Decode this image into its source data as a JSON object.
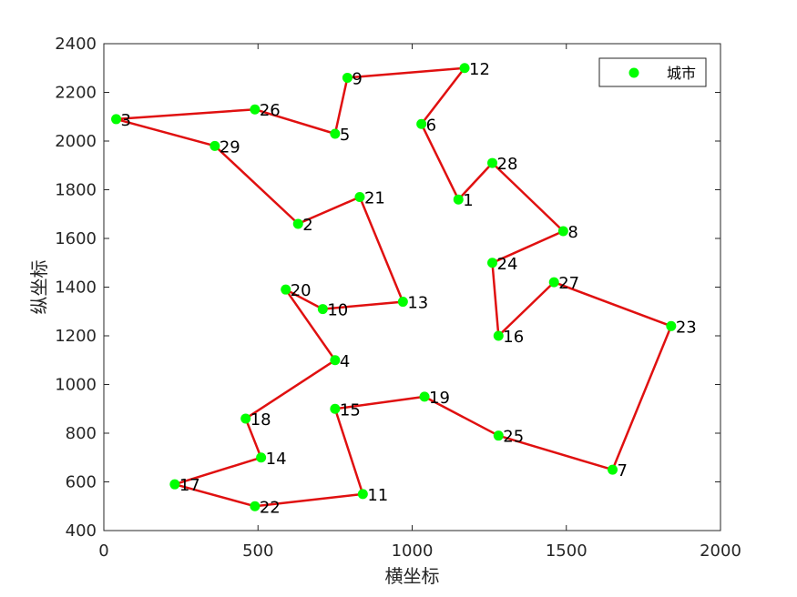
{
  "chart_data": {
    "type": "scatter",
    "xlabel": "横坐标",
    "ylabel": "纵坐标",
    "xlim": [
      0,
      2000
    ],
    "ylim": [
      400,
      2400
    ],
    "xticks": [
      0,
      500,
      1000,
      1500,
      2000
    ],
    "yticks": [
      400,
      600,
      800,
      1000,
      1200,
      1400,
      1600,
      1800,
      2000,
      2200,
      2400
    ],
    "grid": false,
    "legend": {
      "entries": [
        "城市"
      ],
      "position": "top-right"
    },
    "colors": {
      "points": "#00ff00",
      "route": "#e01010",
      "axes": "#262626"
    },
    "series": [
      {
        "name": "城市",
        "points": [
          {
            "id": "1",
            "x": 1150,
            "y": 1760
          },
          {
            "id": "2",
            "x": 630,
            "y": 1660
          },
          {
            "id": "3",
            "x": 40,
            "y": 2090
          },
          {
            "id": "4",
            "x": 750,
            "y": 1100
          },
          {
            "id": "5",
            "x": 750,
            "y": 2030
          },
          {
            "id": "6",
            "x": 1030,
            "y": 2070
          },
          {
            "id": "7",
            "x": 1650,
            "y": 650
          },
          {
            "id": "8",
            "x": 1490,
            "y": 1630
          },
          {
            "id": "9",
            "x": 790,
            "y": 2260
          },
          {
            "id": "10",
            "x": 710,
            "y": 1310
          },
          {
            "id": "11",
            "x": 840,
            "y": 550
          },
          {
            "id": "12",
            "x": 1170,
            "y": 2300
          },
          {
            "id": "13",
            "x": 970,
            "y": 1340
          },
          {
            "id": "14",
            "x": 510,
            "y": 700
          },
          {
            "id": "15",
            "x": 750,
            "y": 900
          },
          {
            "id": "16",
            "x": 1280,
            "y": 1200
          },
          {
            "id": "17",
            "x": 230,
            "y": 590
          },
          {
            "id": "18",
            "x": 460,
            "y": 860
          },
          {
            "id": "19",
            "x": 1040,
            "y": 950
          },
          {
            "id": "20",
            "x": 590,
            "y": 1390
          },
          {
            "id": "21",
            "x": 830,
            "y": 1770
          },
          {
            "id": "22",
            "x": 490,
            "y": 500
          },
          {
            "id": "23",
            "x": 1840,
            "y": 1240
          },
          {
            "id": "24",
            "x": 1260,
            "y": 1500
          },
          {
            "id": "25",
            "x": 1280,
            "y": 790
          },
          {
            "id": "26",
            "x": 490,
            "y": 2130
          },
          {
            "id": "27",
            "x": 1460,
            "y": 1420
          },
          {
            "id": "28",
            "x": 1260,
            "y": 1910
          },
          {
            "id": "29",
            "x": 360,
            "y": 1980
          }
        ]
      }
    ],
    "route": [
      "1",
      "6",
      "12",
      "9",
      "5",
      "26",
      "3",
      "29",
      "2",
      "21",
      "13",
      "10",
      "20",
      "4",
      "18",
      "14",
      "17",
      "22",
      "11",
      "15",
      "19",
      "25",
      "7",
      "23",
      "27",
      "16",
      "24",
      "8",
      "28",
      "1"
    ]
  }
}
